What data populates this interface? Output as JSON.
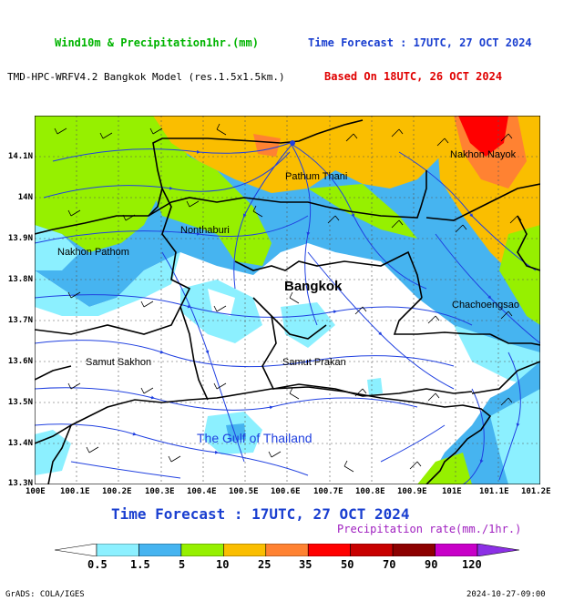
{
  "header": {
    "product": "Wind10m & Precipitation1hr.(mm)",
    "product_color": "#00b400",
    "forecast_time": "Time Forecast : 17UTC, 27 OCT 2024",
    "forecast_color": "#1a3fd0",
    "model": "TMD-HPC-WRFV4.2 Bangkok Model (res.1.5x1.5km.)",
    "based_on": "Based On 18UTC, 26 OCT 2024",
    "based_color": "#e00000"
  },
  "map": {
    "lon_ticks": [
      "100E",
      "100.1E",
      "100.2E",
      "100.3E",
      "100.4E",
      "100.5E",
      "100.6E",
      "100.7E",
      "100.8E",
      "100.9E",
      "101E",
      "101.1E",
      "101.2E"
    ],
    "lat_ticks": [
      "14.1N",
      "14N",
      "13.9N",
      "13.8N",
      "13.7N",
      "13.6N",
      "13.5N",
      "13.4N",
      "13.3N"
    ],
    "places": {
      "pathum_thani": "Pathum Thani",
      "nakhon_nayok": "Nakhon Nayok",
      "nonthaburi": "Nonthaburi",
      "nakhon_pathom": "Nakhon Pathom",
      "bangkok": "Bangkok",
      "chachoengsao": "Chachoengsao",
      "samut_sakhon": "Samut Sakhon",
      "samut_prakan": "Samut Prakan",
      "gulf": "The Gulf of Thailand"
    }
  },
  "bottom": {
    "title": "Time Forecast : 17UTC, 27 OCT 2024",
    "rate_label": "Precipitation rate(mm./1hr.)"
  },
  "colorbar": {
    "colors": [
      "#ffffff",
      "#8cf0ff",
      "#46b4f0",
      "#96f000",
      "#fabe00",
      "#ff8232",
      "#ff0000",
      "#c80000",
      "#8c0000",
      "#c800c8",
      "#8c30e6"
    ],
    "labels": [
      "0.5",
      "1.5",
      "5",
      "10",
      "25",
      "35",
      "50",
      "70",
      "90",
      "120"
    ]
  },
  "footer": {
    "left": "GrADS: COLA/IGES",
    "right": "2024-10-27-09:00"
  }
}
